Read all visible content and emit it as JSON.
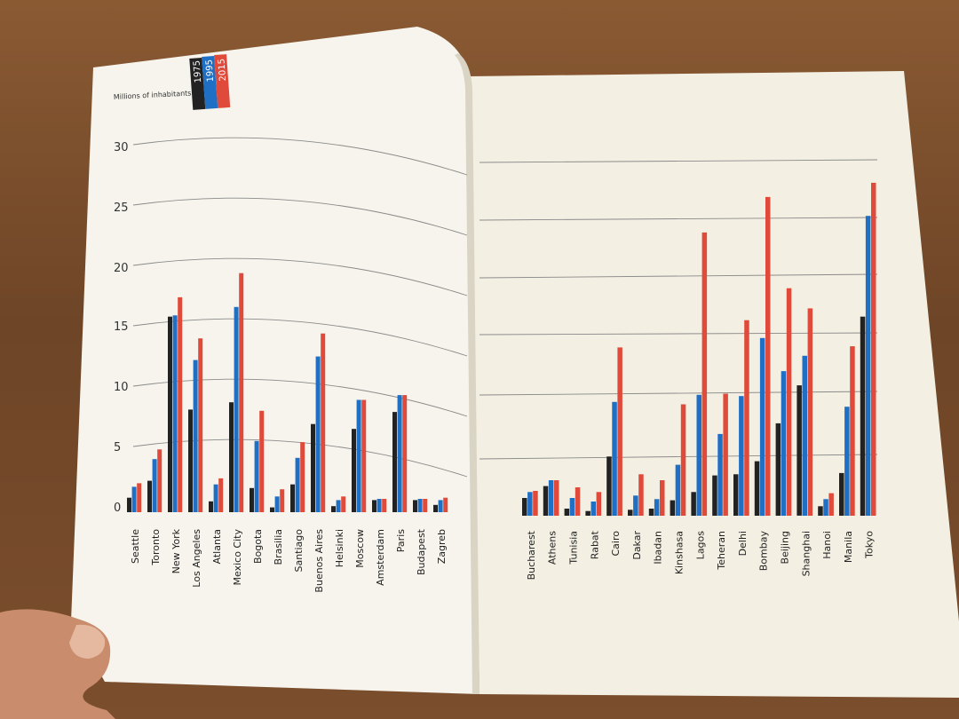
{
  "chart_data": {
    "type": "bar",
    "ylabel": "Millions of inhabitants",
    "yticks": [
      "30",
      "25",
      "20",
      "15",
      "10",
      "5",
      "0"
    ],
    "ylim": [
      0,
      30
    ],
    "grid": true,
    "legend_position": "top-left",
    "colors": {
      "1975": "#222222",
      "1995": "#1f6fc5",
      "2015": "#e04a3a"
    },
    "series": [
      {
        "name": "1975",
        "color": "#222222"
      },
      {
        "name": "1995",
        "color": "#1f6fc5"
      },
      {
        "name": "2015",
        "color": "#e04a3a"
      }
    ],
    "left_page": {
      "categories": [
        "Seattle",
        "Toronto",
        "New York",
        "Los Angeles",
        "Atlanta",
        "Mexico City",
        "Bogota",
        "Brasilia",
        "Santiago",
        "Buenos Aires",
        "Helsinki",
        "Moscow",
        "Amsterdam",
        "Paris",
        "Budapest",
        "Zagreb"
      ],
      "values": [
        [
          1.2,
          2.6,
          16.2,
          8.5,
          0.9,
          9.1,
          2.0,
          0.4,
          2.3,
          7.3,
          0.5,
          6.9,
          1.0,
          8.3,
          1.0,
          0.6
        ],
        [
          2.1,
          4.4,
          16.3,
          12.6,
          2.3,
          17.0,
          5.9,
          1.3,
          4.5,
          12.9,
          1.0,
          9.3,
          1.1,
          9.7,
          1.1,
          1.0
        ],
        [
          2.4,
          5.2,
          17.8,
          14.4,
          2.8,
          19.8,
          8.4,
          1.9,
          5.8,
          14.8,
          1.3,
          9.3,
          1.1,
          9.7,
          1.1,
          1.2
        ]
      ]
    },
    "right_page": {
      "categories": [
        "Bucharest",
        "Athens",
        "Tunisia",
        "Rabat",
        "Cairo",
        "Dakar",
        "Ibadan",
        "Kinshasa",
        "Lagos",
        "Teheran",
        "Delhi",
        "Bombay",
        "Beijing",
        "Shanghai",
        "Hanoi",
        "Manila",
        "Tokyo"
      ],
      "values": [
        [
          1.5,
          2.5,
          0.6,
          0.4,
          5.0,
          0.5,
          0.6,
          1.3,
          2.0,
          3.4,
          3.5,
          4.6,
          7.8,
          11.0,
          0.8,
          3.6,
          16.8
        ],
        [
          2.0,
          3.0,
          1.5,
          1.2,
          9.6,
          1.7,
          1.4,
          4.3,
          10.2,
          6.9,
          10.1,
          15.0,
          12.2,
          13.5,
          1.4,
          9.2,
          25.3
        ],
        [
          2.1,
          3.0,
          2.4,
          2.0,
          14.2,
          3.5,
          3.0,
          9.4,
          23.9,
          10.3,
          16.5,
          26.9,
          19.2,
          17.5,
          1.9,
          14.3,
          28.1
        ]
      ]
    }
  }
}
